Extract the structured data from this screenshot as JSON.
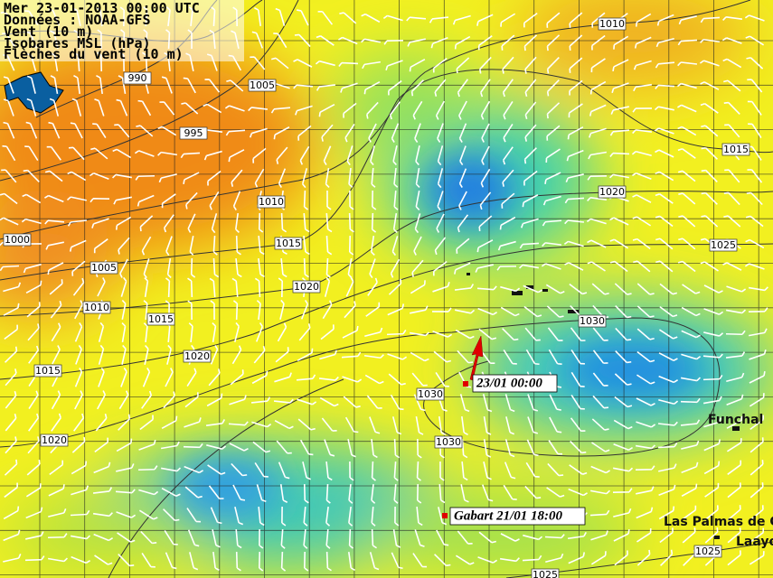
{
  "header": {
    "lines": [
      "Mer 23-01-2013 00:00 UTC",
      "Données : NOAA-GFS",
      "Vent (10 m)",
      "Isobares MSL (hPa)",
      "Flèches du vent (10 m)"
    ]
  },
  "isobar_labels": [
    "990",
    "1005",
    "995",
    "1010",
    "1015",
    "1020",
    "1010",
    "1000",
    "1015",
    "1025",
    "1005",
    "1020",
    "1010",
    "1015",
    "1030",
    "1020",
    "1015",
    "1030",
    "1020",
    "1030",
    "1025",
    "1025"
  ],
  "places": [
    "Funchal",
    "Las Palmas de G",
    "Laayo"
  ],
  "markers": {
    "current": "23/01 00:00",
    "start": "Gabart 21/01 18:00"
  }
}
